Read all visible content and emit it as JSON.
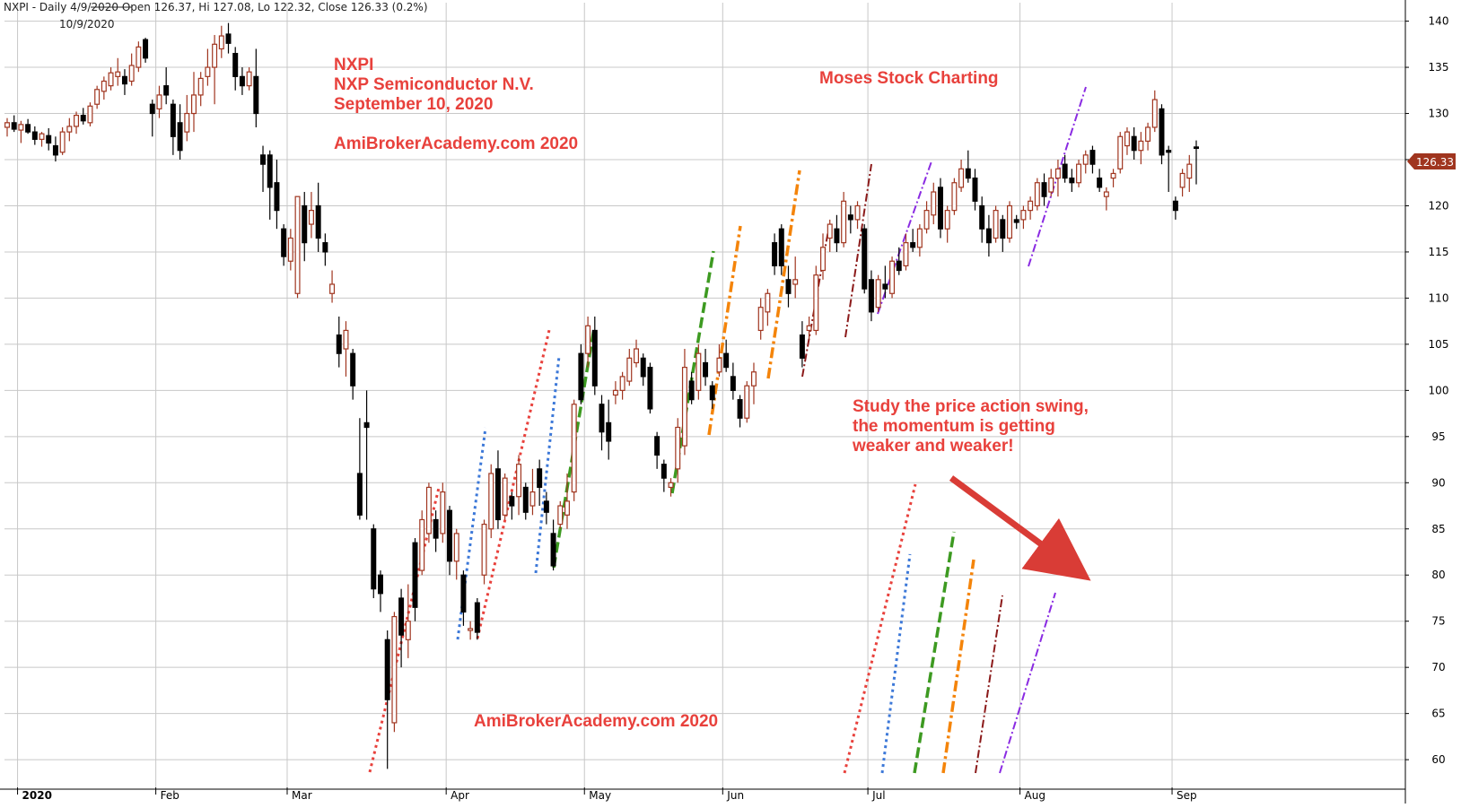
{
  "header": {
    "text": "NXPI - Daily 4/9/2020 Open 126.37, Hi 127.08, Lo 122.32, Close 126.33 (0.2%)",
    "date": "10/9/2020"
  },
  "colors": {
    "up": "#a0351f",
    "down": "#000000",
    "annotation": "#e8413c",
    "grid": "#c8c8c8",
    "price_tag": "#a0351f"
  },
  "annotations": {
    "title_lines": [
      "NXPI",
      "NXP Semiconductor N.V.",
      "September 10, 2020"
    ],
    "site_top": "AmiBrokerAcademy.com 2020",
    "moses": "Moses Stock Charting",
    "study_lines": [
      "Study the price action swing,",
      "the momentum is getting",
      "weaker and weaker!"
    ],
    "site_bottom": "AmiBrokerAcademy.com  2020"
  },
  "chart_data": {
    "type": "candlestick",
    "title": "NXPI - Daily",
    "y_ticks": [
      60,
      65,
      70,
      75,
      80,
      85,
      90,
      95,
      100,
      105,
      110,
      115,
      120,
      125,
      130,
      135,
      140
    ],
    "ylim": [
      57,
      142
    ],
    "x_labels": [
      "2020",
      "Feb",
      "Mar",
      "Apr",
      "May",
      "Jun",
      "Jul",
      "Aug",
      "Sep"
    ],
    "last_price_label": "126.33",
    "grid": true,
    "candles": [
      {
        "o": 128.5,
        "h": 129.5,
        "l": 127.5,
        "c": 129.0
      },
      {
        "o": 129.0,
        "h": 129.8,
        "l": 128.0,
        "c": 128.3
      },
      {
        "o": 128.2,
        "h": 129.2,
        "l": 126.8,
        "c": 128.8
      },
      {
        "o": 128.8,
        "h": 129.4,
        "l": 127.8,
        "c": 128.0
      },
      {
        "o": 128.0,
        "h": 128.6,
        "l": 126.6,
        "c": 127.2
      },
      {
        "o": 127.2,
        "h": 128.0,
        "l": 126.4,
        "c": 127.8
      },
      {
        "o": 127.6,
        "h": 128.4,
        "l": 126.0,
        "c": 126.8
      },
      {
        "o": 126.5,
        "h": 127.5,
        "l": 124.8,
        "c": 125.5
      },
      {
        "o": 125.8,
        "h": 128.5,
        "l": 125.5,
        "c": 128.0
      },
      {
        "o": 128.0,
        "h": 129.5,
        "l": 127.0,
        "c": 128.6
      },
      {
        "o": 128.6,
        "h": 130.2,
        "l": 127.8,
        "c": 129.8
      },
      {
        "o": 129.8,
        "h": 130.6,
        "l": 128.8,
        "c": 129.2
      },
      {
        "o": 129.0,
        "h": 131.2,
        "l": 128.6,
        "c": 130.8
      },
      {
        "o": 131.0,
        "h": 133.0,
        "l": 130.5,
        "c": 132.6
      },
      {
        "o": 132.4,
        "h": 134.0,
        "l": 131.5,
        "c": 133.5
      },
      {
        "o": 133.0,
        "h": 135.0,
        "l": 132.5,
        "c": 134.4
      },
      {
        "o": 134.0,
        "h": 136.0,
        "l": 133.0,
        "c": 134.5
      },
      {
        "o": 134.0,
        "h": 134.8,
        "l": 132.0,
        "c": 133.2
      },
      {
        "o": 133.5,
        "h": 136.5,
        "l": 133.0,
        "c": 135.2
      },
      {
        "o": 135.0,
        "h": 137.8,
        "l": 134.5,
        "c": 137.2
      },
      {
        "o": 138.0,
        "h": 138.2,
        "l": 135.5,
        "c": 136.0
      },
      {
        "o": 131.0,
        "h": 131.5,
        "l": 127.5,
        "c": 130.0
      },
      {
        "o": 130.5,
        "h": 133.0,
        "l": 129.5,
        "c": 132.0
      },
      {
        "o": 133.0,
        "h": 135.0,
        "l": 131.0,
        "c": 132.0
      },
      {
        "o": 131.0,
        "h": 131.5,
        "l": 125.5,
        "c": 127.5
      },
      {
        "o": 129.0,
        "h": 131.0,
        "l": 125.0,
        "c": 126.0
      },
      {
        "o": 128.0,
        "h": 132.0,
        "l": 127.0,
        "c": 130.0
      },
      {
        "o": 130.0,
        "h": 134.5,
        "l": 128.0,
        "c": 132.0
      },
      {
        "o": 132.0,
        "h": 134.5,
        "l": 130.8,
        "c": 133.8
      },
      {
        "o": 134.0,
        "h": 137.0,
        "l": 133.0,
        "c": 135.0
      },
      {
        "o": 135.0,
        "h": 138.5,
        "l": 131.0,
        "c": 137.5
      },
      {
        "o": 137.0,
        "h": 139.5,
        "l": 136.0,
        "c": 138.4
      },
      {
        "o": 138.6,
        "h": 139.8,
        "l": 136.5,
        "c": 137.6
      },
      {
        "o": 136.5,
        "h": 137.2,
        "l": 132.5,
        "c": 134.0
      },
      {
        "o": 134.0,
        "h": 135.0,
        "l": 132.0,
        "c": 133.0
      },
      {
        "o": 133.0,
        "h": 135.0,
        "l": 132.5,
        "c": 134.5
      },
      {
        "o": 134.0,
        "h": 137.0,
        "l": 128.5,
        "c": 130.0
      },
      {
        "o": 125.5,
        "h": 126.5,
        "l": 121.5,
        "c": 124.5
      },
      {
        "o": 125.5,
        "h": 126.0,
        "l": 118.5,
        "c": 122.0
      },
      {
        "o": 122.5,
        "h": 125.0,
        "l": 117.5,
        "c": 119.5
      },
      {
        "o": 117.5,
        "h": 118.0,
        "l": 113.5,
        "c": 114.5
      },
      {
        "o": 114.0,
        "h": 117.5,
        "l": 113.0,
        "c": 116.5
      },
      {
        "o": 110.5,
        "h": 121.0,
        "l": 110.0,
        "c": 121.0
      },
      {
        "o": 120.0,
        "h": 121.5,
        "l": 114.0,
        "c": 116.0
      },
      {
        "o": 118.0,
        "h": 121.5,
        "l": 116.5,
        "c": 119.5
      },
      {
        "o": 120.0,
        "h": 122.5,
        "l": 115.0,
        "c": 116.5
      },
      {
        "o": 116.0,
        "h": 117.0,
        "l": 113.5,
        "c": 115.0
      },
      {
        "o": 110.5,
        "h": 113.0,
        "l": 109.5,
        "c": 111.5
      },
      {
        "o": 106.0,
        "h": 108.0,
        "l": 102.5,
        "c": 104.0
      },
      {
        "o": 104.5,
        "h": 107.5,
        "l": 101.5,
        "c": 106.5
      },
      {
        "o": 104.0,
        "h": 104.5,
        "l": 99.0,
        "c": 100.5
      },
      {
        "o": 91.0,
        "h": 97.0,
        "l": 86.0,
        "c": 86.5
      },
      {
        "o": 96.5,
        "h": 100.0,
        "l": 86.0,
        "c": 96.0
      },
      {
        "o": 85.0,
        "h": 85.5,
        "l": 77.5,
        "c": 78.5
      },
      {
        "o": 80.0,
        "h": 80.5,
        "l": 76.0,
        "c": 78.0
      },
      {
        "o": 73.0,
        "h": 74.0,
        "l": 59.0,
        "c": 66.5
      },
      {
        "o": 64.0,
        "h": 76.0,
        "l": 63.0,
        "c": 75.5
      },
      {
        "o": 77.5,
        "h": 78.5,
        "l": 70.0,
        "c": 73.5
      },
      {
        "o": 73.0,
        "h": 79.0,
        "l": 71.0,
        "c": 75.0
      },
      {
        "o": 83.5,
        "h": 84.0,
        "l": 75.0,
        "c": 76.5
      },
      {
        "o": 80.5,
        "h": 87.0,
        "l": 80.0,
        "c": 86.0
      },
      {
        "o": 84.5,
        "h": 90.0,
        "l": 83.5,
        "c": 89.5
      },
      {
        "o": 86.0,
        "h": 87.0,
        "l": 82.5,
        "c": 84.0
      },
      {
        "o": 84.5,
        "h": 90.0,
        "l": 83.5,
        "c": 89.0
      },
      {
        "o": 87.0,
        "h": 87.5,
        "l": 80.0,
        "c": 81.5
      },
      {
        "o": 81.5,
        "h": 85.0,
        "l": 79.5,
        "c": 84.5
      },
      {
        "o": 80.0,
        "h": 80.5,
        "l": 74.5,
        "c": 76.0
      },
      {
        "o": 74.0,
        "h": 75.0,
        "l": 73.0,
        "c": 74.2
      },
      {
        "o": 77.0,
        "h": 77.5,
        "l": 73.0,
        "c": 73.8
      },
      {
        "o": 80.0,
        "h": 86.0,
        "l": 79.0,
        "c": 85.5
      },
      {
        "o": 85.0,
        "h": 92.0,
        "l": 84.0,
        "c": 91.0
      },
      {
        "o": 91.5,
        "h": 93.5,
        "l": 85.0,
        "c": 86.0
      },
      {
        "o": 86.5,
        "h": 91.0,
        "l": 86.0,
        "c": 90.5
      },
      {
        "o": 88.5,
        "h": 89.0,
        "l": 86.0,
        "c": 87.5
      },
      {
        "o": 88.5,
        "h": 93.0,
        "l": 86.5,
        "c": 92.0
      },
      {
        "o": 89.5,
        "h": 90.0,
        "l": 86.0,
        "c": 86.8
      },
      {
        "o": 87.5,
        "h": 91.5,
        "l": 86.5,
        "c": 89.0
      },
      {
        "o": 91.5,
        "h": 92.5,
        "l": 87.5,
        "c": 89.5
      },
      {
        "o": 88.0,
        "h": 89.0,
        "l": 85.5,
        "c": 86.8
      },
      {
        "o": 84.5,
        "h": 86.0,
        "l": 80.5,
        "c": 81.0
      },
      {
        "o": 85.5,
        "h": 88.0,
        "l": 85.0,
        "c": 87.5
      },
      {
        "o": 86.5,
        "h": 91.0,
        "l": 85.0,
        "c": 88.0
      },
      {
        "o": 89.0,
        "h": 99.0,
        "l": 88.0,
        "c": 98.5
      },
      {
        "o": 104.0,
        "h": 105.0,
        "l": 98.5,
        "c": 99.0
      },
      {
        "o": 104.0,
        "h": 108.0,
        "l": 102.5,
        "c": 107.0
      },
      {
        "o": 106.5,
        "h": 108.0,
        "l": 99.5,
        "c": 100.5
      },
      {
        "o": 98.5,
        "h": 99.5,
        "l": 93.5,
        "c": 95.5
      },
      {
        "o": 96.5,
        "h": 99.0,
        "l": 92.5,
        "c": 94.5
      },
      {
        "o": 99.5,
        "h": 101.0,
        "l": 98.5,
        "c": 100.0
      },
      {
        "o": 100.0,
        "h": 102.0,
        "l": 99.0,
        "c": 101.5
      },
      {
        "o": 101.0,
        "h": 104.5,
        "l": 100.5,
        "c": 103.5
      },
      {
        "o": 103.0,
        "h": 105.5,
        "l": 102.5,
        "c": 104.5
      },
      {
        "o": 103.5,
        "h": 104.0,
        "l": 100.5,
        "c": 101.5
      },
      {
        "o": 102.5,
        "h": 103.0,
        "l": 97.5,
        "c": 98.0
      },
      {
        "o": 95.0,
        "h": 95.5,
        "l": 91.5,
        "c": 93.0
      },
      {
        "o": 92.0,
        "h": 92.5,
        "l": 89.0,
        "c": 90.5
      },
      {
        "o": 89.5,
        "h": 90.5,
        "l": 88.5,
        "c": 90.0
      },
      {
        "o": 91.5,
        "h": 97.0,
        "l": 90.0,
        "c": 96.0
      },
      {
        "o": 94.0,
        "h": 104.5,
        "l": 93.0,
        "c": 102.5
      },
      {
        "o": 101.0,
        "h": 102.0,
        "l": 98.5,
        "c": 99.0
      },
      {
        "o": 100.0,
        "h": 105.0,
        "l": 99.0,
        "c": 104.0
      },
      {
        "o": 103.0,
        "h": 104.5,
        "l": 100.5,
        "c": 101.5
      },
      {
        "o": 100.5,
        "h": 101.0,
        "l": 98.0,
        "c": 99.0
      },
      {
        "o": 102.0,
        "h": 105.0,
        "l": 101.5,
        "c": 103.5
      },
      {
        "o": 104.0,
        "h": 105.5,
        "l": 102.0,
        "c": 102.5
      },
      {
        "o": 101.5,
        "h": 103.0,
        "l": 99.0,
        "c": 100.0
      },
      {
        "o": 99.0,
        "h": 99.5,
        "l": 96.0,
        "c": 97.0
      },
      {
        "o": 97.0,
        "h": 101.0,
        "l": 96.5,
        "c": 100.5
      },
      {
        "o": 100.5,
        "h": 103.0,
        "l": 98.5,
        "c": 102.0
      },
      {
        "o": 106.5,
        "h": 110.0,
        "l": 105.5,
        "c": 109.0
      },
      {
        "o": 108.5,
        "h": 111.0,
        "l": 107.0,
        "c": 110.5
      },
      {
        "o": 116.0,
        "h": 117.0,
        "l": 112.5,
        "c": 113.5
      },
      {
        "o": 117.5,
        "h": 118.0,
        "l": 112.5,
        "c": 113.5
      },
      {
        "o": 112.0,
        "h": 113.5,
        "l": 109.0,
        "c": 110.5
      },
      {
        "o": 111.5,
        "h": 114.5,
        "l": 110.0,
        "c": 112.0
      },
      {
        "o": 106.0,
        "h": 107.5,
        "l": 102.5,
        "c": 103.5
      },
      {
        "o": 106.5,
        "h": 108.0,
        "l": 105.5,
        "c": 107.0
      },
      {
        "o": 106.5,
        "h": 113.5,
        "l": 106.0,
        "c": 112.5
      },
      {
        "o": 113.0,
        "h": 117.0,
        "l": 112.0,
        "c": 115.5
      },
      {
        "o": 116.5,
        "h": 118.5,
        "l": 115.0,
        "c": 118.0
      },
      {
        "o": 117.5,
        "h": 119.0,
        "l": 115.0,
        "c": 116.0
      },
      {
        "o": 116.0,
        "h": 121.5,
        "l": 115.5,
        "c": 120.5
      },
      {
        "o": 119.0,
        "h": 120.0,
        "l": 117.0,
        "c": 118.5
      },
      {
        "o": 118.5,
        "h": 120.5,
        "l": 117.5,
        "c": 120.0
      },
      {
        "o": 117.5,
        "h": 118.0,
        "l": 110.5,
        "c": 111.0
      },
      {
        "o": 112.0,
        "h": 113.0,
        "l": 107.5,
        "c": 108.5
      },
      {
        "o": 109.0,
        "h": 112.5,
        "l": 108.5,
        "c": 112.0
      },
      {
        "o": 111.5,
        "h": 113.5,
        "l": 110.0,
        "c": 111.0
      },
      {
        "o": 110.5,
        "h": 114.5,
        "l": 110.0,
        "c": 114.0
      },
      {
        "o": 114.0,
        "h": 115.5,
        "l": 112.5,
        "c": 113.0
      },
      {
        "o": 113.5,
        "h": 117.0,
        "l": 113.0,
        "c": 116.0
      },
      {
        "o": 116.0,
        "h": 117.5,
        "l": 115.0,
        "c": 115.5
      },
      {
        "o": 115.5,
        "h": 118.0,
        "l": 114.5,
        "c": 117.5
      },
      {
        "o": 117.5,
        "h": 120.5,
        "l": 117.0,
        "c": 119.5
      },
      {
        "o": 119.0,
        "h": 122.5,
        "l": 118.0,
        "c": 121.5
      },
      {
        "o": 122.0,
        "h": 123.0,
        "l": 116.5,
        "c": 117.5
      },
      {
        "o": 117.5,
        "h": 120.0,
        "l": 116.0,
        "c": 119.5
      },
      {
        "o": 119.5,
        "h": 123.0,
        "l": 119.0,
        "c": 122.5
      },
      {
        "o": 122.0,
        "h": 125.0,
        "l": 121.5,
        "c": 124.0
      },
      {
        "o": 124.0,
        "h": 126.0,
        "l": 122.5,
        "c": 123.0
      },
      {
        "o": 123.0,
        "h": 124.0,
        "l": 119.5,
        "c": 120.5
      },
      {
        "o": 120.0,
        "h": 121.0,
        "l": 116.0,
        "c": 117.5
      },
      {
        "o": 117.5,
        "h": 119.0,
        "l": 114.5,
        "c": 116.0
      },
      {
        "o": 116.5,
        "h": 120.0,
        "l": 116.0,
        "c": 119.5
      },
      {
        "o": 118.5,
        "h": 119.0,
        "l": 115.0,
        "c": 116.5
      },
      {
        "o": 116.5,
        "h": 120.5,
        "l": 116.0,
        "c": 120.0
      },
      {
        "o": 118.5,
        "h": 119.0,
        "l": 117.5,
        "c": 118.2
      },
      {
        "o": 118.5,
        "h": 120.0,
        "l": 117.5,
        "c": 119.5
      },
      {
        "o": 119.5,
        "h": 121.0,
        "l": 118.5,
        "c": 120.5
      },
      {
        "o": 120.0,
        "h": 123.0,
        "l": 119.5,
        "c": 122.5
      },
      {
        "o": 122.5,
        "h": 123.5,
        "l": 120.0,
        "c": 121.0
      },
      {
        "o": 121.5,
        "h": 124.0,
        "l": 121.0,
        "c": 123.0
      },
      {
        "o": 123.0,
        "h": 125.0,
        "l": 121.0,
        "c": 124.0
      },
      {
        "o": 124.5,
        "h": 125.5,
        "l": 122.5,
        "c": 123.0
      },
      {
        "o": 123.0,
        "h": 124.0,
        "l": 121.5,
        "c": 122.5
      },
      {
        "o": 122.5,
        "h": 125.0,
        "l": 122.0,
        "c": 124.5
      },
      {
        "o": 124.5,
        "h": 126.0,
        "l": 123.5,
        "c": 125.5
      },
      {
        "o": 126.0,
        "h": 126.5,
        "l": 123.5,
        "c": 124.5
      },
      {
        "o": 123.0,
        "h": 124.0,
        "l": 121.5,
        "c": 122.0
      },
      {
        "o": 121.0,
        "h": 122.0,
        "l": 119.5,
        "c": 121.5
      },
      {
        "o": 123.0,
        "h": 124.0,
        "l": 122.0,
        "c": 123.5
      },
      {
        "o": 124.0,
        "h": 128.0,
        "l": 123.5,
        "c": 127.5
      },
      {
        "o": 126.5,
        "h": 128.5,
        "l": 125.5,
        "c": 128.0
      },
      {
        "o": 127.5,
        "h": 128.5,
        "l": 125.0,
        "c": 126.0
      },
      {
        "o": 126.0,
        "h": 128.0,
        "l": 124.5,
        "c": 127.0
      },
      {
        "o": 127.0,
        "h": 129.0,
        "l": 126.0,
        "c": 128.5
      },
      {
        "o": 128.5,
        "h": 132.5,
        "l": 128.0,
        "c": 131.5
      },
      {
        "o": 130.5,
        "h": 131.0,
        "l": 124.5,
        "c": 125.5
      },
      {
        "o": 126.0,
        "h": 126.5,
        "l": 121.5,
        "c": 125.8
      },
      {
        "o": 120.5,
        "h": 121.0,
        "l": 118.5,
        "c": 119.5
      },
      {
        "o": 122.0,
        "h": 124.0,
        "l": 121.0,
        "c": 123.5
      },
      {
        "o": 123.0,
        "h": 125.5,
        "l": 121.5,
        "c": 124.5
      },
      {
        "o": 126.37,
        "h": 127.08,
        "l": 122.32,
        "c": 126.33
      }
    ]
  }
}
